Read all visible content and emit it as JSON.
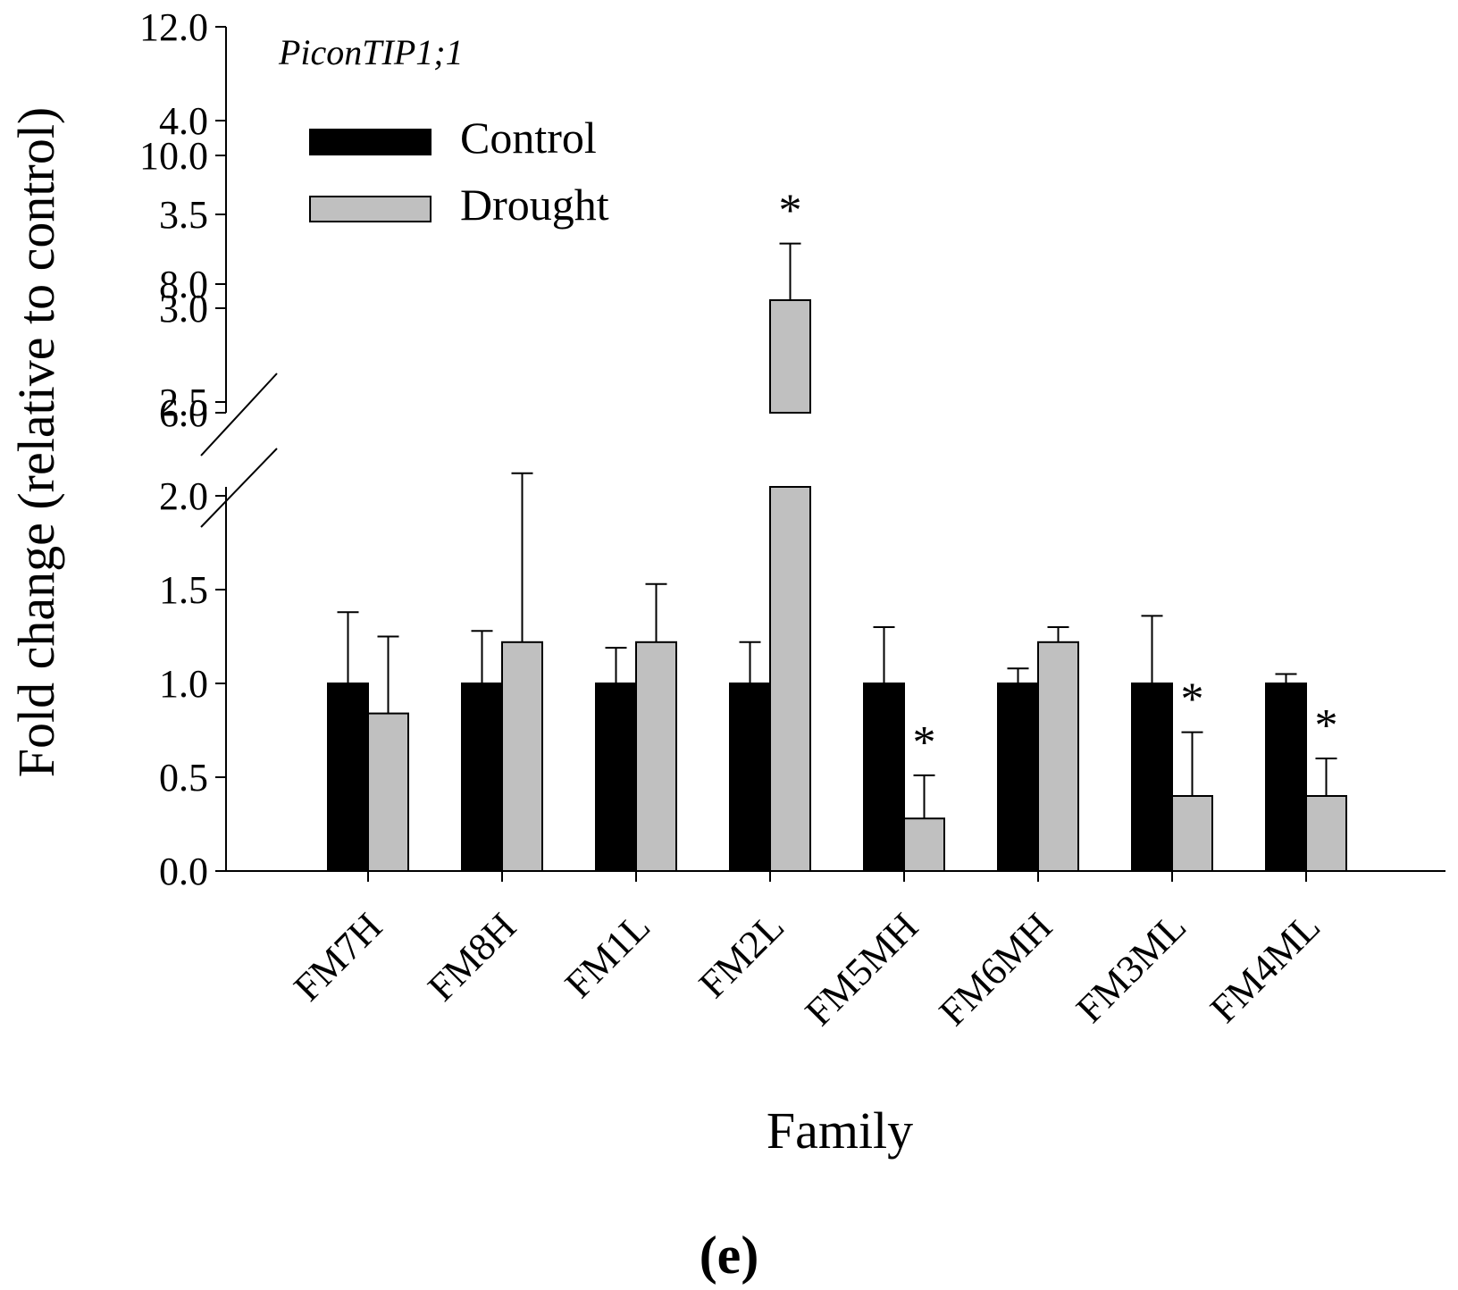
{
  "panel_label": "(e)",
  "chart_data": {
    "type": "bar",
    "title": "PiconTIP1;1",
    "xlabel": "Family",
    "ylabel": "Fold change (relative to control)",
    "categories": [
      "FM7H",
      "FM8H",
      "FM1L",
      "FM2L",
      "FM5MH",
      "FM6MH",
      "FM3ML",
      "FM4ML"
    ],
    "series": [
      {
        "name": "Control",
        "color": "#000000",
        "values": [
          1.0,
          1.0,
          1.0,
          1.0,
          1.0,
          1.0,
          1.0,
          1.0
        ],
        "errors": [
          0.38,
          0.28,
          0.19,
          0.22,
          0.3,
          0.08,
          0.36,
          0.05
        ]
      },
      {
        "name": "Drought",
        "color": "#c0c0c0",
        "values": [
          0.84,
          1.22,
          1.22,
          7.75,
          0.28,
          1.22,
          0.4,
          0.4
        ],
        "errors": [
          0.41,
          0.9,
          0.31,
          0.88,
          0.23,
          0.08,
          0.34,
          0.2
        ]
      }
    ],
    "significance": [
      {
        "category": "FM2L",
        "series": "Drought",
        "mark": "*"
      },
      {
        "category": "FM5MH",
        "series": "Drought",
        "mark": "*"
      },
      {
        "category": "FM3ML",
        "series": "Drought",
        "mark": "*"
      },
      {
        "category": "FM4ML",
        "series": "Drought",
        "mark": "*"
      }
    ],
    "axis_break": {
      "lower_range": [
        0,
        4.0
      ],
      "upper_range": [
        6.0,
        12.0
      ]
    },
    "ylim": [
      0,
      12.0
    ],
    "yticks_lower": [
      {
        "value": 0,
        "label": "0.0"
      },
      {
        "value": 0.5,
        "label": "0.5"
      },
      {
        "value": 1.0,
        "label": "1.0"
      },
      {
        "value": 1.5,
        "label": "1.5"
      },
      {
        "value": 2.0,
        "label": "2.0"
      },
      {
        "value": 2.5,
        "label": "2.5"
      },
      {
        "value": 3.0,
        "label": "3.0"
      },
      {
        "value": 3.5,
        "label": "3.5"
      },
      {
        "value": 4.0,
        "label": "4.0"
      }
    ],
    "yticks_upper": [
      {
        "value": 6.0,
        "label": "6.0"
      },
      {
        "value": 8.0,
        "label": "8.0"
      },
      {
        "value": 10.0,
        "label": "10.0"
      },
      {
        "value": 12.0,
        "label": "12.0"
      }
    ],
    "legend_position": "top-left",
    "grid": false
  }
}
